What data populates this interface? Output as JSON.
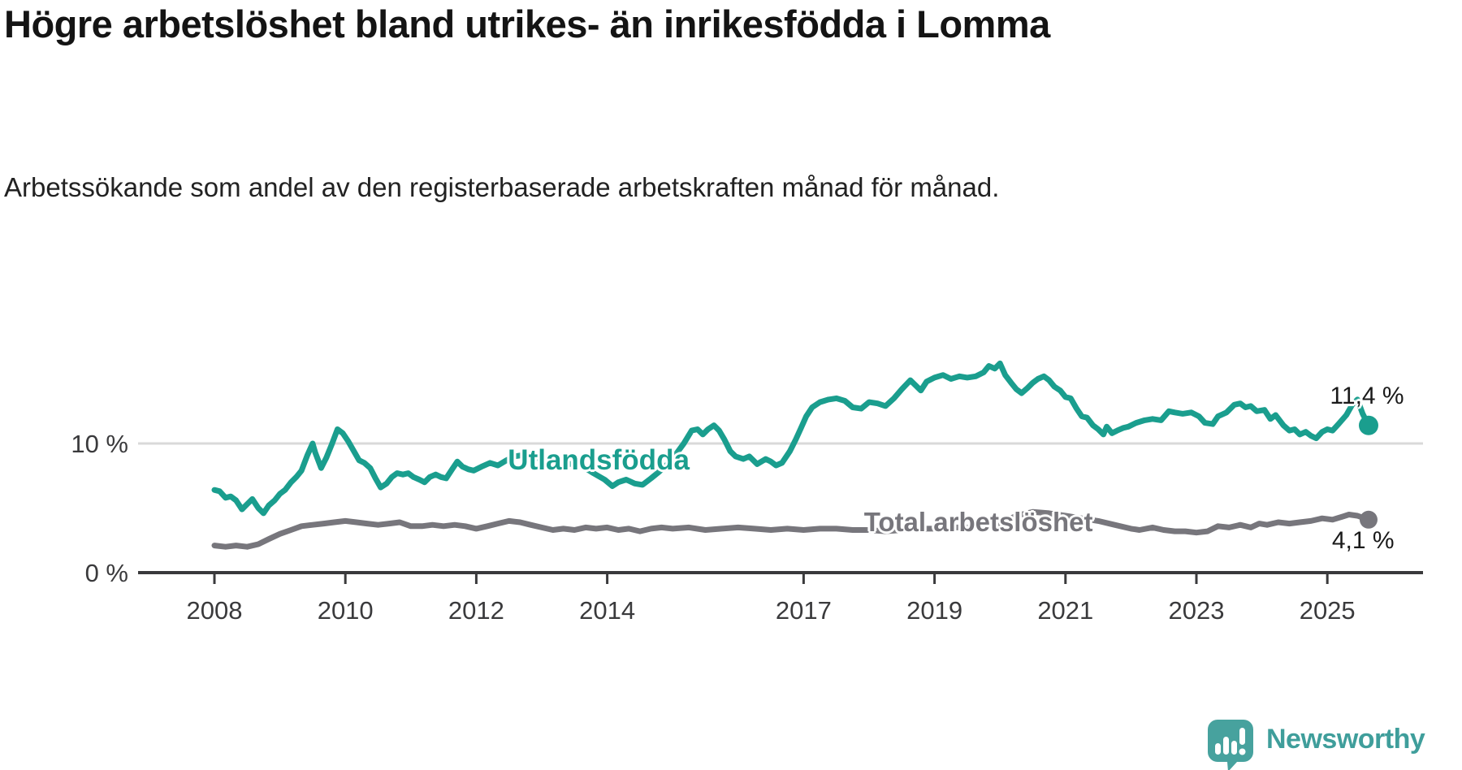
{
  "footer": {
    "brand": "Newsworthy"
  },
  "colors": {
    "accent_teal": "#1a9e8e",
    "series_gray": "#77767c",
    "axis": "#3a3a3c",
    "grid": "#d9d9d9",
    "value_label": "#1a1a1a",
    "logo_teal": "#47a29e",
    "logo_text_teal": "#3f9e9b"
  },
  "chart_data": {
    "type": "line",
    "title": "Högre arbetslöshet bland utrikes- än inrikesfödda i Lomma",
    "subtitle": "Arbetssökande som andel av den registerbaserade arbetskraften månad för månad.",
    "xlabel": "",
    "ylabel": "",
    "xlim": [
      2007.6,
      2026.3
    ],
    "ylim": [
      0,
      17
    ],
    "grid": "horizontal-at-10-only",
    "legend_position": "inline-labels-on-lines",
    "xticks": [
      2008,
      2010,
      2012,
      2014,
      2017,
      2019,
      2021,
      2023,
      2025
    ],
    "yticks": [
      {
        "value": 0,
        "label": "0 %"
      },
      {
        "value": 10,
        "label": "10 %"
      }
    ],
    "series": [
      {
        "name": "Utlandsfödda",
        "color": "#1a9e8e",
        "end_value": 11.4,
        "end_label": "11,4 %",
        "label_anchor": {
          "x": 2013.87,
          "y": 8.68
        },
        "end_label_anchor": {
          "x": 2025.04,
          "y": 13.5
        },
        "points": [
          [
            2008.0,
            6.4
          ],
          [
            2008.08,
            6.3
          ],
          [
            2008.17,
            5.8
          ],
          [
            2008.25,
            5.9
          ],
          [
            2008.33,
            5.6
          ],
          [
            2008.42,
            4.9
          ],
          [
            2008.5,
            5.3
          ],
          [
            2008.58,
            5.7
          ],
          [
            2008.67,
            5.0
          ],
          [
            2008.75,
            4.6
          ],
          [
            2008.83,
            5.2
          ],
          [
            2008.92,
            5.6
          ],
          [
            2009.0,
            6.1
          ],
          [
            2009.08,
            6.4
          ],
          [
            2009.17,
            7.0
          ],
          [
            2009.25,
            7.4
          ],
          [
            2009.33,
            7.9
          ],
          [
            2009.42,
            9.1
          ],
          [
            2009.5,
            10.0
          ],
          [
            2009.54,
            9.3
          ],
          [
            2009.63,
            8.1
          ],
          [
            2009.71,
            8.9
          ],
          [
            2009.79,
            9.9
          ],
          [
            2009.88,
            11.1
          ],
          [
            2009.96,
            10.8
          ],
          [
            2010.04,
            10.2
          ],
          [
            2010.13,
            9.4
          ],
          [
            2010.21,
            8.7
          ],
          [
            2010.29,
            8.5
          ],
          [
            2010.38,
            8.1
          ],
          [
            2010.46,
            7.3
          ],
          [
            2010.54,
            6.6
          ],
          [
            2010.63,
            6.9
          ],
          [
            2010.71,
            7.4
          ],
          [
            2010.79,
            7.7
          ],
          [
            2010.88,
            7.6
          ],
          [
            2010.96,
            7.7
          ],
          [
            2011.04,
            7.4
          ],
          [
            2011.13,
            7.2
          ],
          [
            2011.21,
            7.0
          ],
          [
            2011.29,
            7.4
          ],
          [
            2011.38,
            7.6
          ],
          [
            2011.46,
            7.4
          ],
          [
            2011.54,
            7.3
          ],
          [
            2011.63,
            8.0
          ],
          [
            2011.71,
            8.6
          ],
          [
            2011.79,
            8.2
          ],
          [
            2011.88,
            8.0
          ],
          [
            2011.96,
            7.9
          ],
          [
            2012.08,
            8.2
          ],
          [
            2012.21,
            8.5
          ],
          [
            2012.33,
            8.3
          ],
          [
            2012.46,
            8.7
          ],
          [
            2012.58,
            9.0
          ],
          [
            2012.71,
            9.1
          ],
          [
            2012.83,
            8.8
          ],
          [
            2012.96,
            8.9
          ],
          [
            2013.13,
            8.7
          ],
          [
            2013.29,
            8.5
          ],
          [
            2013.46,
            8.4
          ],
          [
            2013.63,
            8.2
          ],
          [
            2013.79,
            7.7
          ],
          [
            2013.96,
            7.2
          ],
          [
            2014.08,
            6.7
          ],
          [
            2014.17,
            7.0
          ],
          [
            2014.29,
            7.2
          ],
          [
            2014.42,
            6.9
          ],
          [
            2014.54,
            6.8
          ],
          [
            2014.67,
            7.3
          ],
          [
            2014.79,
            7.8
          ],
          [
            2014.92,
            8.4
          ],
          [
            2015.04,
            9.1
          ],
          [
            2015.17,
            10.0
          ],
          [
            2015.29,
            11.0
          ],
          [
            2015.38,
            11.1
          ],
          [
            2015.46,
            10.7
          ],
          [
            2015.54,
            11.1
          ],
          [
            2015.63,
            11.4
          ],
          [
            2015.71,
            11.0
          ],
          [
            2015.79,
            10.3
          ],
          [
            2015.88,
            9.4
          ],
          [
            2015.96,
            9.0
          ],
          [
            2016.08,
            8.8
          ],
          [
            2016.17,
            9.0
          ],
          [
            2016.29,
            8.4
          ],
          [
            2016.42,
            8.8
          ],
          [
            2016.5,
            8.6
          ],
          [
            2016.58,
            8.3
          ],
          [
            2016.67,
            8.5
          ],
          [
            2016.79,
            9.4
          ],
          [
            2016.88,
            10.3
          ],
          [
            2016.96,
            11.2
          ],
          [
            2017.04,
            12.1
          ],
          [
            2017.13,
            12.8
          ],
          [
            2017.25,
            13.2
          ],
          [
            2017.38,
            13.4
          ],
          [
            2017.5,
            13.5
          ],
          [
            2017.63,
            13.3
          ],
          [
            2017.75,
            12.8
          ],
          [
            2017.88,
            12.7
          ],
          [
            2018.0,
            13.2
          ],
          [
            2018.13,
            13.1
          ],
          [
            2018.25,
            12.9
          ],
          [
            2018.38,
            13.5
          ],
          [
            2018.5,
            14.2
          ],
          [
            2018.63,
            14.9
          ],
          [
            2018.71,
            14.5
          ],
          [
            2018.79,
            14.1
          ],
          [
            2018.88,
            14.8
          ],
          [
            2019.0,
            15.1
          ],
          [
            2019.13,
            15.3
          ],
          [
            2019.25,
            15.0
          ],
          [
            2019.38,
            15.2
          ],
          [
            2019.5,
            15.1
          ],
          [
            2019.63,
            15.2
          ],
          [
            2019.75,
            15.5
          ],
          [
            2019.83,
            16.0
          ],
          [
            2019.92,
            15.8
          ],
          [
            2020.0,
            16.2
          ],
          [
            2020.08,
            15.3
          ],
          [
            2020.17,
            14.7
          ],
          [
            2020.25,
            14.2
          ],
          [
            2020.33,
            13.9
          ],
          [
            2020.42,
            14.3
          ],
          [
            2020.5,
            14.7
          ],
          [
            2020.58,
            15.0
          ],
          [
            2020.67,
            15.2
          ],
          [
            2020.75,
            14.9
          ],
          [
            2020.83,
            14.4
          ],
          [
            2020.92,
            14.1
          ],
          [
            2021.0,
            13.6
          ],
          [
            2021.08,
            13.5
          ],
          [
            2021.17,
            12.7
          ],
          [
            2021.25,
            12.1
          ],
          [
            2021.33,
            12.0
          ],
          [
            2021.42,
            11.4
          ],
          [
            2021.5,
            11.1
          ],
          [
            2021.58,
            10.7
          ],
          [
            2021.63,
            11.3
          ],
          [
            2021.71,
            10.8
          ],
          [
            2021.79,
            11.0
          ],
          [
            2021.88,
            11.2
          ],
          [
            2021.96,
            11.3
          ],
          [
            2022.08,
            11.6
          ],
          [
            2022.21,
            11.8
          ],
          [
            2022.33,
            11.9
          ],
          [
            2022.46,
            11.8
          ],
          [
            2022.58,
            12.5
          ],
          [
            2022.67,
            12.4
          ],
          [
            2022.79,
            12.3
          ],
          [
            2022.92,
            12.4
          ],
          [
            2023.04,
            12.1
          ],
          [
            2023.13,
            11.6
          ],
          [
            2023.25,
            11.5
          ],
          [
            2023.33,
            12.1
          ],
          [
            2023.46,
            12.4
          ],
          [
            2023.58,
            13.0
          ],
          [
            2023.67,
            13.1
          ],
          [
            2023.75,
            12.8
          ],
          [
            2023.83,
            12.9
          ],
          [
            2023.92,
            12.5
          ],
          [
            2024.04,
            12.6
          ],
          [
            2024.13,
            11.9
          ],
          [
            2024.21,
            12.2
          ],
          [
            2024.33,
            11.4
          ],
          [
            2024.42,
            11.0
          ],
          [
            2024.5,
            11.1
          ],
          [
            2024.58,
            10.7
          ],
          [
            2024.67,
            10.9
          ],
          [
            2024.75,
            10.6
          ],
          [
            2024.83,
            10.4
          ],
          [
            2024.92,
            10.9
          ],
          [
            2025.0,
            11.1
          ],
          [
            2025.08,
            11.0
          ],
          [
            2025.17,
            11.5
          ],
          [
            2025.29,
            12.2
          ],
          [
            2025.38,
            13.0
          ],
          [
            2025.46,
            13.4
          ],
          [
            2025.54,
            12.3
          ],
          [
            2025.63,
            11.4
          ]
        ]
      },
      {
        "name": "Total arbetslöshet",
        "color": "#77767c",
        "end_value": 4.1,
        "end_label": "4,1 %",
        "label_anchor": {
          "x": 2019.67,
          "y": 3.9
        },
        "end_label_anchor": {
          "x": 2025.07,
          "y": 2.33
        },
        "points": [
          [
            2008.0,
            2.1
          ],
          [
            2008.17,
            2.0
          ],
          [
            2008.33,
            2.1
          ],
          [
            2008.5,
            2.0
          ],
          [
            2008.67,
            2.2
          ],
          [
            2008.83,
            2.6
          ],
          [
            2009.0,
            3.0
          ],
          [
            2009.17,
            3.3
          ],
          [
            2009.33,
            3.6
          ],
          [
            2009.5,
            3.7
          ],
          [
            2009.67,
            3.8
          ],
          [
            2009.83,
            3.9
          ],
          [
            2010.0,
            4.0
          ],
          [
            2010.17,
            3.9
          ],
          [
            2010.33,
            3.8
          ],
          [
            2010.5,
            3.7
          ],
          [
            2010.67,
            3.8
          ],
          [
            2010.83,
            3.9
          ],
          [
            2011.0,
            3.6
          ],
          [
            2011.17,
            3.6
          ],
          [
            2011.33,
            3.7
          ],
          [
            2011.5,
            3.6
          ],
          [
            2011.67,
            3.7
          ],
          [
            2011.83,
            3.6
          ],
          [
            2012.0,
            3.4
          ],
          [
            2012.17,
            3.6
          ],
          [
            2012.33,
            3.8
          ],
          [
            2012.5,
            4.0
          ],
          [
            2012.67,
            3.9
          ],
          [
            2012.83,
            3.7
          ],
          [
            2013.0,
            3.5
          ],
          [
            2013.17,
            3.3
          ],
          [
            2013.33,
            3.4
          ],
          [
            2013.5,
            3.3
          ],
          [
            2013.67,
            3.5
          ],
          [
            2013.83,
            3.4
          ],
          [
            2014.0,
            3.5
          ],
          [
            2014.17,
            3.3
          ],
          [
            2014.33,
            3.4
          ],
          [
            2014.5,
            3.2
          ],
          [
            2014.67,
            3.4
          ],
          [
            2014.83,
            3.5
          ],
          [
            2015.0,
            3.4
          ],
          [
            2015.25,
            3.5
          ],
          [
            2015.5,
            3.3
          ],
          [
            2015.75,
            3.4
          ],
          [
            2016.0,
            3.5
          ],
          [
            2016.25,
            3.4
          ],
          [
            2016.5,
            3.3
          ],
          [
            2016.75,
            3.4
          ],
          [
            2017.0,
            3.3
          ],
          [
            2017.25,
            3.4
          ],
          [
            2017.5,
            3.4
          ],
          [
            2017.75,
            3.3
          ],
          [
            2018.0,
            3.3
          ],
          [
            2018.25,
            3.2
          ],
          [
            2018.5,
            3.3
          ],
          [
            2018.75,
            3.4
          ],
          [
            2019.0,
            3.4
          ],
          [
            2019.25,
            3.5
          ],
          [
            2019.5,
            3.5
          ],
          [
            2019.75,
            3.6
          ],
          [
            2020.0,
            3.8
          ],
          [
            2020.25,
            4.4
          ],
          [
            2020.5,
            4.7
          ],
          [
            2020.75,
            4.6
          ],
          [
            2021.0,
            4.4
          ],
          [
            2021.25,
            4.2
          ],
          [
            2021.5,
            4.0
          ],
          [
            2021.75,
            3.7
          ],
          [
            2022.0,
            3.4
          ],
          [
            2022.13,
            3.3
          ],
          [
            2022.33,
            3.5
          ],
          [
            2022.5,
            3.3
          ],
          [
            2022.67,
            3.2
          ],
          [
            2022.83,
            3.2
          ],
          [
            2023.0,
            3.1
          ],
          [
            2023.17,
            3.2
          ],
          [
            2023.33,
            3.6
          ],
          [
            2023.5,
            3.5
          ],
          [
            2023.67,
            3.7
          ],
          [
            2023.83,
            3.5
          ],
          [
            2023.96,
            3.8
          ],
          [
            2024.08,
            3.7
          ],
          [
            2024.25,
            3.9
          ],
          [
            2024.42,
            3.8
          ],
          [
            2024.58,
            3.9
          ],
          [
            2024.75,
            4.0
          ],
          [
            2024.92,
            4.2
          ],
          [
            2025.08,
            4.1
          ],
          [
            2025.21,
            4.3
          ],
          [
            2025.33,
            4.5
          ],
          [
            2025.46,
            4.4
          ],
          [
            2025.63,
            4.1
          ]
        ]
      }
    ]
  }
}
